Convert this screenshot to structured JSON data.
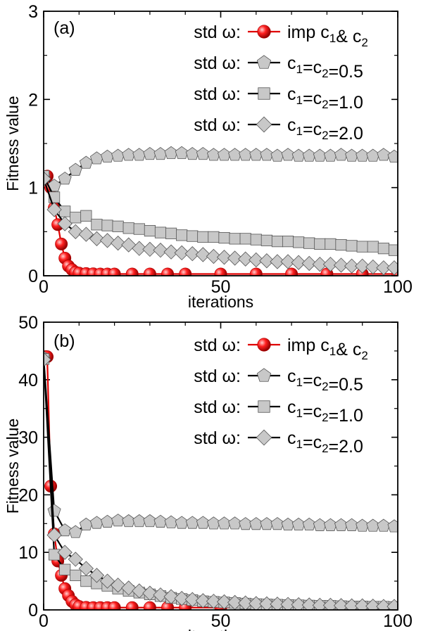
{
  "chart_data": [
    {
      "type": "line",
      "panel_label": "(a)",
      "xlabel": "iterations",
      "ylabel": "Fitness value",
      "xlim": [
        0,
        100
      ],
      "ylim": [
        0,
        3
      ],
      "xticks": [
        0,
        50,
        100
      ],
      "yticks": [
        0,
        1,
        2,
        3
      ],
      "legend_position": "top-right",
      "series": [
        {
          "legend_prefix": "std ω:",
          "name_main": "imp c",
          "name_sub1": "1",
          "name_mid": "& c",
          "name_sub2": "2",
          "name_tail": "",
          "marker": "sphere",
          "color": "#e00000",
          "marker_fill": "#e00000",
          "x": [
            1,
            2,
            3,
            4,
            5,
            6,
            7,
            8,
            9,
            10,
            12,
            14,
            16,
            18,
            20,
            25,
            30,
            35,
            40,
            50,
            60,
            70,
            80,
            90,
            100
          ],
          "y": [
            1.13,
            1.0,
            0.77,
            0.58,
            0.36,
            0.2,
            0.11,
            0.07,
            0.04,
            0.03,
            0.025,
            0.022,
            0.02,
            0.02,
            0.02,
            0.02,
            0.02,
            0.02,
            0.02,
            0.02,
            0.02,
            0.02,
            0.02,
            0.02,
            0.02
          ]
        },
        {
          "legend_prefix": "std ω:",
          "name_main": "c",
          "name_sub1": "1",
          "name_mid": "=c",
          "name_sub2": "2",
          "name_tail": "=0.5",
          "marker": "pentagon",
          "color": "#000000",
          "marker_fill": "#c8c8c8",
          "x": [
            0,
            3,
            6,
            9,
            12,
            15,
            18,
            21,
            24,
            27,
            30,
            33,
            36,
            39,
            42,
            45,
            48,
            51,
            54,
            57,
            60,
            63,
            66,
            69,
            72,
            75,
            78,
            81,
            84,
            87,
            90,
            93,
            96,
            99
          ],
          "y": [
            1.12,
            1.02,
            1.1,
            1.2,
            1.28,
            1.33,
            1.35,
            1.36,
            1.37,
            1.37,
            1.38,
            1.38,
            1.39,
            1.39,
            1.38,
            1.38,
            1.37,
            1.37,
            1.37,
            1.37,
            1.37,
            1.37,
            1.36,
            1.37,
            1.36,
            1.36,
            1.36,
            1.36,
            1.37,
            1.36,
            1.36,
            1.36,
            1.37,
            1.35
          ]
        },
        {
          "legend_prefix": "std ω:",
          "name_main": "c",
          "name_sub1": "1",
          "name_mid": "=c",
          "name_sub2": "2",
          "name_tail": "=1.0",
          "marker": "square",
          "color": "#000000",
          "marker_fill": "#c8c8c8",
          "x": [
            0,
            3,
            6,
            9,
            12,
            15,
            18,
            21,
            24,
            27,
            30,
            33,
            36,
            39,
            42,
            45,
            48,
            51,
            54,
            57,
            60,
            63,
            66,
            69,
            72,
            75,
            78,
            81,
            84,
            87,
            90,
            93,
            96,
            99
          ],
          "y": [
            1.13,
            0.89,
            0.73,
            0.66,
            0.68,
            0.58,
            0.57,
            0.56,
            0.54,
            0.53,
            0.51,
            0.49,
            0.48,
            0.46,
            0.45,
            0.44,
            0.44,
            0.43,
            0.42,
            0.42,
            0.41,
            0.4,
            0.39,
            0.39,
            0.38,
            0.37,
            0.36,
            0.36,
            0.35,
            0.34,
            0.33,
            0.33,
            0.31,
            0.29
          ]
        },
        {
          "legend_prefix": "std ω:",
          "name_main": "c",
          "name_sub1": "1",
          "name_mid": "=c",
          "name_sub2": "2",
          "name_tail": "=2.0",
          "marker": "diamond",
          "color": "#000000",
          "marker_fill": "#c8c8c8",
          "x": [
            0,
            3,
            6,
            9,
            12,
            15,
            18,
            21,
            24,
            27,
            30,
            33,
            36,
            39,
            42,
            45,
            48,
            51,
            54,
            57,
            60,
            63,
            66,
            69,
            72,
            75,
            78,
            81,
            84,
            87,
            90,
            93,
            96,
            99
          ],
          "y": [
            1.1,
            0.75,
            0.59,
            0.5,
            0.47,
            0.42,
            0.4,
            0.37,
            0.35,
            0.31,
            0.3,
            0.29,
            0.27,
            0.26,
            0.25,
            0.24,
            0.22,
            0.21,
            0.2,
            0.19,
            0.18,
            0.17,
            0.16,
            0.16,
            0.15,
            0.14,
            0.13,
            0.13,
            0.12,
            0.11,
            0.11,
            0.1,
            0.09,
            0.09
          ]
        }
      ]
    },
    {
      "type": "line",
      "panel_label": "(b)",
      "xlabel": "iterations",
      "ylabel": "Fitness value",
      "xlim": [
        0,
        100
      ],
      "ylim": [
        0,
        50
      ],
      "xticks": [
        0,
        50,
        100
      ],
      "yticks": [
        0,
        10,
        20,
        30,
        40,
        50
      ],
      "legend_position": "top-right",
      "series": [
        {
          "legend_prefix": "std ω:",
          "name_main": "imp c",
          "name_sub1": "1",
          "name_mid": "& c",
          "name_sub2": "2",
          "name_tail": "",
          "marker": "sphere",
          "color": "#e00000",
          "marker_fill": "#e00000",
          "x": [
            0.5,
            1,
            2,
            3,
            4,
            5,
            6,
            7,
            8,
            9,
            10,
            12,
            14,
            16,
            18,
            20,
            25,
            30,
            35,
            40,
            50,
            60,
            70,
            80,
            90,
            100
          ],
          "y": [
            44,
            44,
            21.5,
            13.2,
            8.5,
            6,
            3.7,
            2.5,
            1.5,
            0.9,
            0.6,
            0.45,
            0.4,
            0.4,
            0.4,
            0.4,
            0.4,
            0.4,
            0.4,
            0.4,
            0.4,
            0.4,
            0.4,
            0.4,
            0.4,
            0.4
          ]
        },
        {
          "legend_prefix": "std ω:",
          "name_main": "c",
          "name_sub1": "1",
          "name_mid": "=c",
          "name_sub2": "2",
          "name_tail": "=0.5",
          "marker": "pentagon",
          "color": "#000000",
          "marker_fill": "#c8c8c8",
          "x": [
            0,
            3,
            6,
            9,
            12,
            15,
            18,
            21,
            24,
            27,
            30,
            33,
            36,
            39,
            42,
            45,
            48,
            51,
            54,
            57,
            60,
            63,
            66,
            69,
            72,
            75,
            78,
            81,
            84,
            87,
            90,
            93,
            96,
            99
          ],
          "y": [
            43.8,
            17.2,
            13.8,
            13.5,
            14.8,
            15.1,
            15.3,
            15.5,
            15.4,
            15.4,
            15.4,
            15.3,
            15.2,
            15.1,
            15.1,
            15.1,
            15.0,
            15.0,
            15.0,
            14.9,
            14.9,
            14.9,
            14.9,
            14.8,
            14.8,
            14.8,
            14.7,
            14.7,
            14.7,
            14.7,
            14.6,
            14.6,
            14.6,
            14.5
          ]
        },
        {
          "legend_prefix": "std ω:",
          "name_main": "c",
          "name_sub1": "1",
          "name_mid": "=c",
          "name_sub2": "2",
          "name_tail": "=1.0",
          "marker": "square",
          "color": "#000000",
          "marker_fill": "#c8c8c8",
          "x": [
            0,
            3,
            6,
            9,
            12,
            15,
            18,
            21,
            24,
            27,
            30,
            33,
            36,
            39,
            42,
            45,
            48,
            51,
            54,
            57,
            60,
            63,
            66,
            69,
            72,
            75,
            78,
            81,
            84,
            87,
            90,
            93,
            96,
            99
          ],
          "y": [
            43.6,
            9.6,
            7.0,
            6.0,
            5.0,
            4.6,
            4.2,
            3.7,
            3.3,
            3.0,
            2.7,
            2.4,
            2.1,
            1.9,
            1.7,
            1.5,
            1.4,
            1.3,
            1.2,
            1.1,
            1.0,
            0.95,
            0.9,
            0.85,
            0.8,
            0.75,
            0.7,
            0.7,
            0.65,
            0.6,
            0.6,
            0.55,
            0.55,
            0.5
          ]
        },
        {
          "legend_prefix": "std ω:",
          "name_main": "c",
          "name_sub1": "1",
          "name_mid": "=c",
          "name_sub2": "2",
          "name_tail": "=2.0",
          "marker": "diamond",
          "color": "#000000",
          "marker_fill": "#c8c8c8",
          "x": [
            0,
            3,
            6,
            9,
            12,
            15,
            18,
            21,
            24,
            27,
            30,
            33,
            36,
            39,
            42,
            45,
            48,
            51,
            54,
            57,
            60,
            63,
            66,
            69,
            72,
            75,
            78,
            81,
            84,
            87,
            90,
            93,
            96,
            99
          ],
          "y": [
            43.5,
            13.0,
            10.0,
            8.8,
            7.2,
            6.0,
            5.0,
            4.3,
            3.8,
            3.3,
            2.9,
            2.6,
            2.3,
            2.0,
            1.8,
            1.6,
            1.5,
            1.4,
            1.3,
            1.2,
            1.1,
            1.05,
            1.0,
            0.95,
            0.9,
            0.85,
            0.8,
            0.8,
            0.75,
            0.7,
            0.7,
            0.65,
            0.6,
            0.6
          ]
        }
      ]
    }
  ]
}
